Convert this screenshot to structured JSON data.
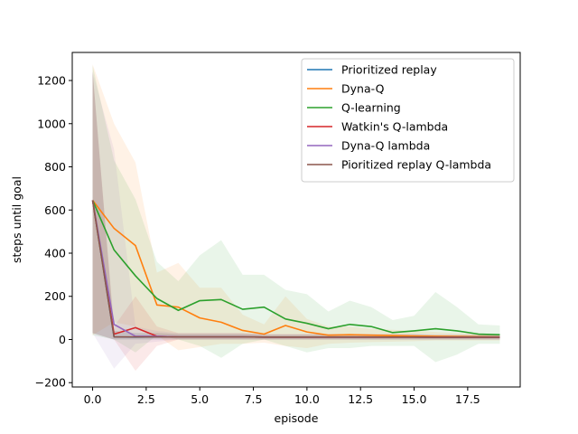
{
  "chart_data": {
    "type": "line",
    "xlabel": "episode",
    "ylabel": "steps until goal",
    "xlim": [
      -0.95,
      19.95
    ],
    "ylim": [
      -220,
      1330
    ],
    "xticks": [
      0.0,
      2.5,
      5.0,
      7.5,
      10.0,
      12.5,
      15.0,
      17.5
    ],
    "xtick_labels": [
      "0.0",
      "2.5",
      "5.0",
      "7.5",
      "10.0",
      "12.5",
      "15.0",
      "17.5"
    ],
    "yticks": [
      -200,
      0,
      200,
      400,
      600,
      800,
      1000,
      1200
    ],
    "ytick_labels": [
      "−200",
      "0",
      "200",
      "400",
      "600",
      "800",
      "1000",
      "1200"
    ],
    "legend_position": "top-right",
    "grid": false,
    "x": [
      0,
      1,
      2,
      3,
      4,
      5,
      6,
      7,
      8,
      9,
      10,
      11,
      12,
      13,
      14,
      15,
      16,
      17,
      18,
      19
    ],
    "series": [
      {
        "name": "Prioritized replay",
        "color": "#1f77b4",
        "values": [
          645,
          12,
          11,
          12,
          12,
          12,
          12,
          12,
          11,
          11,
          11,
          11,
          11,
          11,
          11,
          11,
          10,
          10,
          10,
          10
        ],
        "upper": [
          1240,
          40,
          30,
          30,
          25,
          25,
          25,
          25,
          22,
          22,
          22,
          22,
          22,
          22,
          22,
          22,
          20,
          20,
          20,
          20
        ],
        "lower": [
          30,
          0,
          0,
          0,
          0,
          0,
          0,
          0,
          0,
          0,
          0,
          0,
          0,
          0,
          0,
          0,
          0,
          0,
          0,
          0
        ]
      },
      {
        "name": "Dyna-Q",
        "color": "#ff7f0e",
        "values": [
          645,
          515,
          435,
          160,
          150,
          100,
          80,
          42,
          25,
          65,
          35,
          20,
          22,
          20,
          18,
          16,
          15,
          14,
          13,
          12
        ],
        "upper": [
          1275,
          1000,
          820,
          310,
          355,
          240,
          240,
          115,
          70,
          200,
          95,
          60,
          60,
          50,
          45,
          40,
          35,
          30,
          28,
          25
        ],
        "lower": [
          20,
          80,
          60,
          20,
          -50,
          -35,
          -20,
          -20,
          -15,
          -30,
          -40,
          -20,
          -15,
          -12,
          -10,
          -8,
          -5,
          -5,
          -5,
          -5
        ]
      },
      {
        "name": "Q-learning",
        "color": "#2ca02c",
        "values": [
          645,
          415,
          295,
          190,
          135,
          180,
          185,
          140,
          150,
          95,
          75,
          50,
          70,
          60,
          32,
          40,
          50,
          40,
          25,
          22
        ],
        "upper": [
          1270,
          830,
          650,
          360,
          270,
          390,
          460,
          300,
          300,
          230,
          210,
          130,
          180,
          150,
          90,
          110,
          220,
          150,
          70,
          65
        ],
        "lower": [
          20,
          0,
          -60,
          20,
          0,
          -30,
          -85,
          -20,
          0,
          -30,
          -60,
          -40,
          -40,
          -30,
          -30,
          -30,
          -105,
          -70,
          -20,
          -20
        ]
      },
      {
        "name": "Watkin's Q-lambda",
        "color": "#d62728",
        "values": [
          645,
          25,
          55,
          15,
          12,
          12,
          12,
          12,
          11,
          11,
          11,
          11,
          11,
          11,
          11,
          11,
          10,
          10,
          10,
          10
        ],
        "upper": [
          1240,
          60,
          200,
          60,
          30,
          30,
          30,
          30,
          25,
          25,
          25,
          25,
          25,
          25,
          25,
          25,
          22,
          22,
          22,
          22
        ],
        "lower": [
          30,
          0,
          -145,
          -30,
          0,
          0,
          0,
          0,
          0,
          0,
          0,
          0,
          0,
          0,
          0,
          0,
          0,
          0,
          0,
          0
        ]
      },
      {
        "name": "Dyna-Q lambda",
        "color": "#9467bd",
        "values": [
          645,
          70,
          15,
          15,
          12,
          12,
          12,
          12,
          11,
          11,
          11,
          11,
          11,
          11,
          11,
          11,
          10,
          10,
          10,
          10
        ],
        "upper": [
          1240,
          880,
          60,
          40,
          30,
          30,
          30,
          30,
          25,
          25,
          25,
          25,
          25,
          25,
          25,
          25,
          22,
          22,
          22,
          22
        ],
        "lower": [
          30,
          -135,
          -20,
          -10,
          0,
          0,
          0,
          0,
          0,
          0,
          0,
          0,
          0,
          0,
          0,
          0,
          0,
          0,
          0,
          0
        ]
      },
      {
        "name": "Pioritized replay Q-lambda",
        "color": "#8c564b",
        "values": [
          645,
          12,
          12,
          12,
          12,
          12,
          12,
          12,
          11,
          11,
          11,
          11,
          11,
          11,
          11,
          11,
          10,
          10,
          10,
          10
        ],
        "upper": [
          1240,
          40,
          30,
          30,
          25,
          25,
          25,
          25,
          22,
          22,
          22,
          22,
          22,
          22,
          22,
          22,
          20,
          20,
          20,
          20
        ],
        "lower": [
          30,
          0,
          0,
          0,
          0,
          0,
          0,
          0,
          0,
          0,
          0,
          0,
          0,
          0,
          0,
          0,
          0,
          0,
          0,
          0
        ]
      }
    ]
  }
}
